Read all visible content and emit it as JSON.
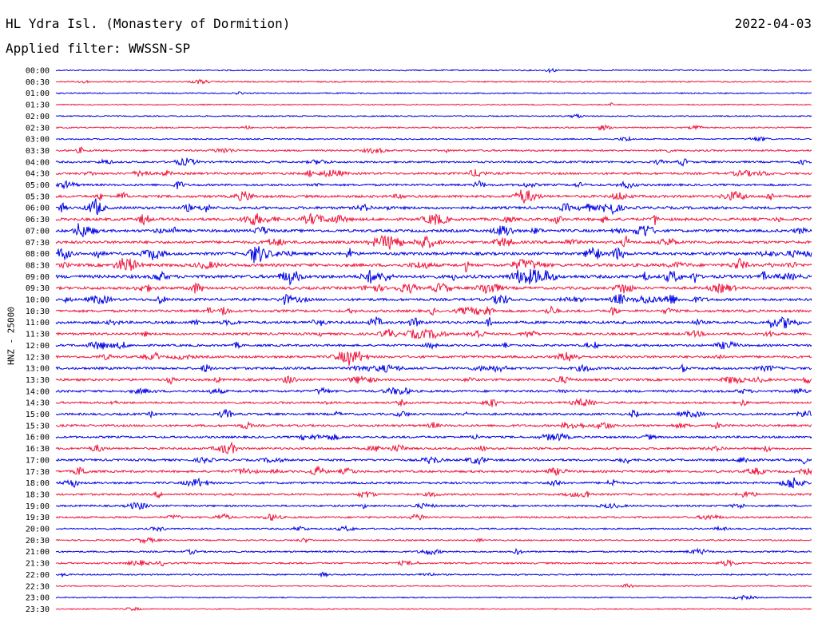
{
  "header": {
    "station": "HL Ydra Isl. (Monastery of Dormition)",
    "date": "2022-04-03",
    "filter": "Applied filter: WWSSN-SP"
  },
  "colors": {
    "odd_trace": "#0000e6",
    "even_trace": "#f0143c",
    "text": "#000000"
  },
  "chart_data": {
    "type": "line",
    "title": "HL Ydra Isl. (Monastery of Dormition)",
    "subtitle": "Applied filter: WWSSN-SP",
    "ylabel": "HNZ - 25000",
    "xlabel": "",
    "grid": false,
    "rows": [
      {
        "time": "00:00",
        "activity": 0.08
      },
      {
        "time": "00:30",
        "activity": 0.12
      },
      {
        "time": "01:00",
        "activity": 0.08
      },
      {
        "time": "01:30",
        "activity": 0.05
      },
      {
        "time": "02:00",
        "activity": 0.07
      },
      {
        "time": "02:30",
        "activity": 0.15
      },
      {
        "time": "03:00",
        "activity": 0.1
      },
      {
        "time": "03:30",
        "activity": 0.28
      },
      {
        "time": "04:00",
        "activity": 0.35
      },
      {
        "time": "04:30",
        "activity": 0.45
      },
      {
        "time": "05:00",
        "activity": 0.4
      },
      {
        "time": "05:30",
        "activity": 0.55
      },
      {
        "time": "06:00",
        "activity": 0.6
      },
      {
        "time": "06:30",
        "activity": 0.65
      },
      {
        "time": "07:00",
        "activity": 0.62
      },
      {
        "time": "07:30",
        "activity": 0.65
      },
      {
        "time": "08:00",
        "activity": 0.7
      },
      {
        "time": "08:30",
        "activity": 0.72
      },
      {
        "time": "09:00",
        "activity": 0.8
      },
      {
        "time": "09:30",
        "activity": 0.65
      },
      {
        "time": "10:00",
        "activity": 0.6
      },
      {
        "time": "10:30",
        "activity": 0.55
      },
      {
        "time": "11:00",
        "activity": 0.6
      },
      {
        "time": "11:30",
        "activity": 0.5
      },
      {
        "time": "12:00",
        "activity": 0.45
      },
      {
        "time": "12:30",
        "activity": 0.5
      },
      {
        "time": "13:00",
        "activity": 0.52
      },
      {
        "time": "13:30",
        "activity": 0.5
      },
      {
        "time": "14:00",
        "activity": 0.45
      },
      {
        "time": "14:30",
        "activity": 0.4
      },
      {
        "time": "15:00",
        "activity": 0.42
      },
      {
        "time": "15:30",
        "activity": 0.45
      },
      {
        "time": "16:00",
        "activity": 0.4
      },
      {
        "time": "16:30",
        "activity": 0.42
      },
      {
        "time": "17:00",
        "activity": 0.45
      },
      {
        "time": "17:30",
        "activity": 0.45
      },
      {
        "time": "18:00",
        "activity": 0.4
      },
      {
        "time": "18:30",
        "activity": 0.35
      },
      {
        "time": "19:00",
        "activity": 0.3
      },
      {
        "time": "19:30",
        "activity": 0.28
      },
      {
        "time": "20:00",
        "activity": 0.2
      },
      {
        "time": "20:30",
        "activity": 0.15
      },
      {
        "time": "21:00",
        "activity": 0.22
      },
      {
        "time": "21:30",
        "activity": 0.25
      },
      {
        "time": "22:00",
        "activity": 0.15
      },
      {
        "time": "22:30",
        "activity": 0.05
      },
      {
        "time": "23:00",
        "activity": 0.04
      },
      {
        "time": "23:30",
        "activity": 0.03
      }
    ]
  }
}
